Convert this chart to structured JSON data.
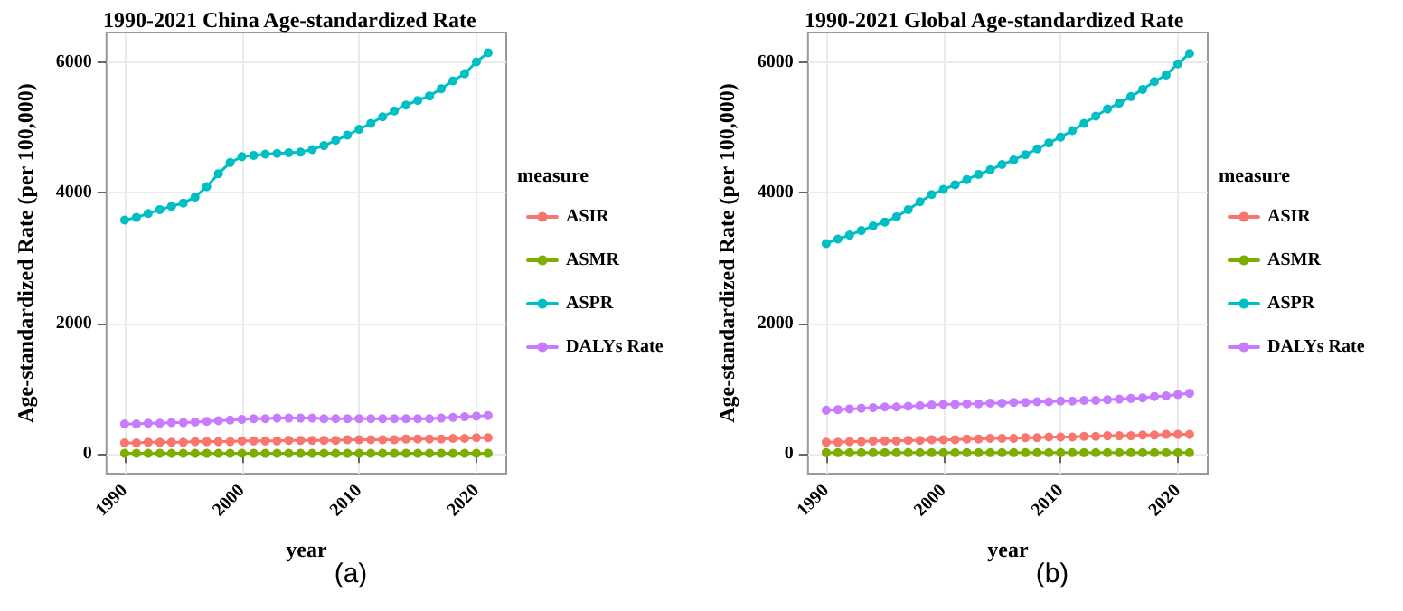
{
  "chart_data": [
    {
      "type": "line",
      "title": "1990-2021 China Age-standardized Rate",
      "xlabel": "year",
      "ylabel": "Age-standardized Rate (per 100,000)",
      "legend_title": "measure",
      "annotations": [
        "(a)"
      ],
      "x": [
        1990,
        1991,
        1992,
        1993,
        1994,
        1995,
        1996,
        1997,
        1998,
        1999,
        2000,
        2001,
        2002,
        2003,
        2004,
        2005,
        2006,
        2007,
        2008,
        2009,
        2010,
        2011,
        2012,
        2013,
        2014,
        2015,
        2016,
        2017,
        2018,
        2019,
        2020,
        2021
      ],
      "xlim": [
        1988.45,
        2022.55
      ],
      "xticks": [
        1990,
        2000,
        2010,
        2020
      ],
      "ylim": [
        -300,
        6450
      ],
      "yticks": [
        0,
        2000,
        4000,
        6000
      ],
      "grid": true,
      "legend": "right",
      "marker": "circle",
      "series": [
        {
          "name": "ASIR",
          "color": "#f8766d",
          "values": [
            170,
            170,
            180,
            180,
            180,
            180,
            190,
            190,
            190,
            190,
            200,
            200,
            200,
            200,
            210,
            210,
            210,
            210,
            210,
            220,
            220,
            220,
            220,
            220,
            230,
            230,
            230,
            230,
            240,
            240,
            250,
            250
          ]
        },
        {
          "name": "ASMR",
          "color": "#7cae00",
          "values": [
            10,
            10,
            10,
            10,
            10,
            10,
            10,
            10,
            10,
            10,
            10,
            10,
            10,
            10,
            10,
            10,
            10,
            10,
            10,
            10,
            10,
            10,
            10,
            10,
            10,
            10,
            10,
            10,
            10,
            10,
            10,
            10
          ]
        },
        {
          "name": "ASPR",
          "color": "#00bfc4",
          "values": [
            3580,
            3620,
            3680,
            3740,
            3790,
            3840,
            3930,
            4090,
            4290,
            4460,
            4550,
            4570,
            4590,
            4600,
            4610,
            4620,
            4660,
            4720,
            4800,
            4880,
            4970,
            5060,
            5160,
            5250,
            5340,
            5410,
            5480,
            5590,
            5710,
            5820,
            6000,
            6140
          ]
        },
        {
          "name": "DALYs Rate",
          "color": "#c77cff",
          "values": [
            460,
            460,
            470,
            470,
            480,
            480,
            490,
            500,
            510,
            520,
            530,
            540,
            540,
            550,
            550,
            550,
            550,
            540,
            540,
            540,
            540,
            540,
            540,
            540,
            540,
            540,
            540,
            550,
            560,
            570,
            580,
            590
          ]
        }
      ]
    },
    {
      "type": "line",
      "title": "1990-2021 Global Age-standardized Rate",
      "xlabel": "year",
      "ylabel": "Age-standardized Rate (per 100,000)",
      "legend_title": "measure",
      "annotations": [
        "(b)"
      ],
      "x": [
        1990,
        1991,
        1992,
        1993,
        1994,
        1995,
        1996,
        1997,
        1998,
        1999,
        2000,
        2001,
        2002,
        2003,
        2004,
        2005,
        2006,
        2007,
        2008,
        2009,
        2010,
        2011,
        2012,
        2013,
        2014,
        2015,
        2016,
        2017,
        2018,
        2019,
        2020,
        2021
      ],
      "xlim": [
        1988.45,
        2022.55
      ],
      "xticks": [
        1990,
        2000,
        2010,
        2020
      ],
      "ylim": [
        -300,
        6450
      ],
      "yticks": [
        0,
        2000,
        4000,
        6000
      ],
      "grid": true,
      "legend": "right",
      "marker": "circle",
      "series": [
        {
          "name": "ASIR",
          "color": "#f8766d",
          "values": [
            180,
            180,
            190,
            190,
            200,
            200,
            200,
            210,
            210,
            220,
            220,
            220,
            230,
            230,
            240,
            240,
            240,
            250,
            250,
            260,
            260,
            260,
            270,
            270,
            280,
            280,
            280,
            290,
            290,
            300,
            300,
            300
          ]
        },
        {
          "name": "ASMR",
          "color": "#7cae00",
          "values": [
            20,
            20,
            20,
            20,
            20,
            20,
            20,
            20,
            20,
            20,
            20,
            20,
            20,
            20,
            20,
            20,
            20,
            20,
            20,
            20,
            20,
            20,
            20,
            20,
            20,
            20,
            20,
            20,
            20,
            20,
            20,
            20
          ]
        },
        {
          "name": "ASPR",
          "color": "#00bfc4",
          "values": [
            3220,
            3290,
            3350,
            3420,
            3490,
            3550,
            3630,
            3740,
            3860,
            3970,
            4050,
            4120,
            4200,
            4280,
            4350,
            4430,
            4500,
            4580,
            4670,
            4760,
            4850,
            4950,
            5060,
            5170,
            5280,
            5370,
            5470,
            5580,
            5700,
            5800,
            5970,
            6130
          ]
        },
        {
          "name": "DALYs Rate",
          "color": "#c77cff",
          "values": [
            670,
            680,
            690,
            700,
            710,
            720,
            720,
            730,
            740,
            750,
            760,
            760,
            770,
            770,
            780,
            780,
            790,
            790,
            800,
            800,
            810,
            810,
            820,
            820,
            830,
            840,
            850,
            860,
            880,
            890,
            910,
            930
          ]
        }
      ]
    }
  ]
}
